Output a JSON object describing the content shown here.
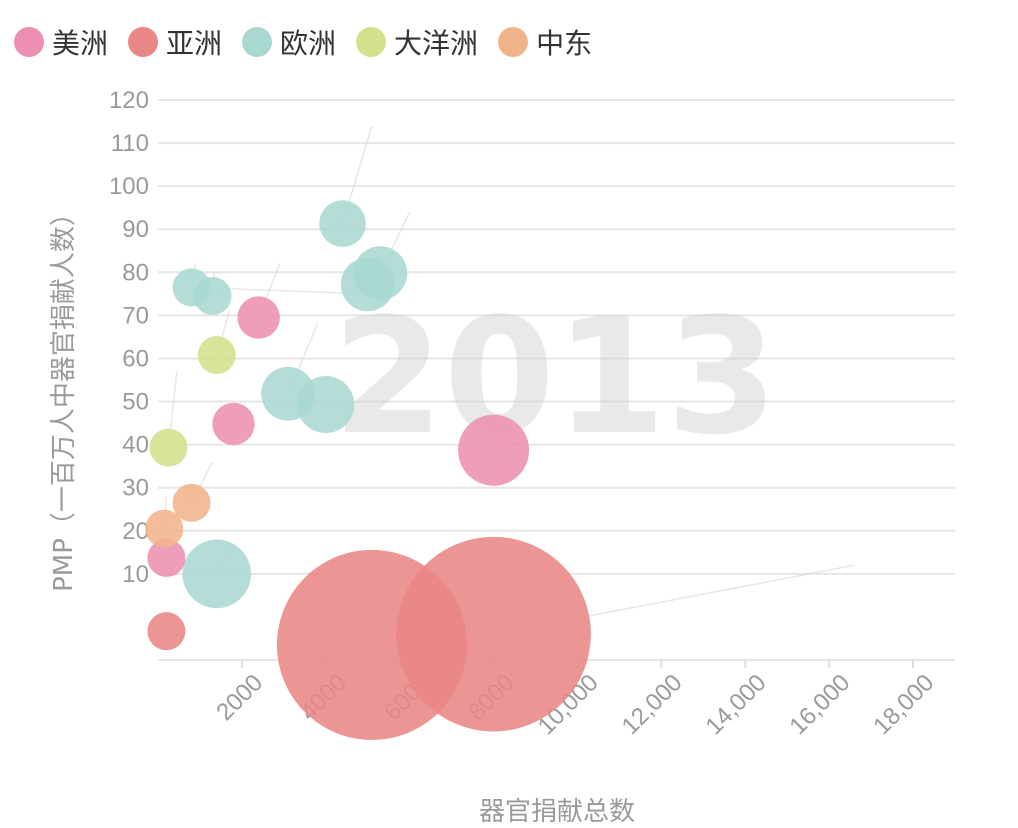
{
  "chart_data": {
    "type": "scatter",
    "title": "",
    "year_label": "2013",
    "xlabel": "器官捐献总数",
    "ylabel": "PMP（一百万人中器官捐献人数）",
    "xlim": [
      0,
      19000
    ],
    "ylim": [
      -10,
      120
    ],
    "x_ticks": [
      2000,
      4000,
      6000,
      8000,
      10000,
      12000,
      14000,
      16000,
      18000
    ],
    "x_tick_labels": [
      "2000",
      "4000",
      "6000",
      "8000",
      "10,000",
      "12,000",
      "14,000",
      "16,000",
      "18,000"
    ],
    "y_ticks": [
      10,
      20,
      30,
      40,
      50,
      60,
      70,
      80,
      90,
      100,
      110,
      120
    ],
    "grid": true,
    "legend_position": "top-left",
    "series": [
      {
        "name": "美洲",
        "color": "#ec8fb2",
        "points": [
          {
            "x": 2400,
            "y": 69.5,
            "size": 5
          },
          {
            "x": 1800,
            "y": 44.8,
            "size": 5
          },
          {
            "x": 8000,
            "y": 38.7,
            "size": 14
          },
          {
            "x": 200,
            "y": 13.7,
            "size": 4
          }
        ]
      },
      {
        "name": "亚洲",
        "color": "#e98686",
        "points": [
          {
            "x": 5100,
            "y": -6.5,
            "size": 100
          },
          {
            "x": 8000,
            "y": -4,
            "size": 105
          },
          {
            "x": 200,
            "y": -3.3,
            "size": 4
          }
        ]
      },
      {
        "name": "欧洲",
        "color": "#a9d8d0",
        "points": [
          {
            "x": 800,
            "y": 76.5,
            "size": 4
          },
          {
            "x": 1300,
            "y": 74.5,
            "size": 4
          },
          {
            "x": 4400,
            "y": 91.3,
            "size": 6
          },
          {
            "x": 5300,
            "y": 79.8,
            "size": 8
          },
          {
            "x": 5000,
            "y": 77.2,
            "size": 8
          },
          {
            "x": 3100,
            "y": 51.8,
            "size": 8
          },
          {
            "x": 4000,
            "y": 49.3,
            "size": 9
          },
          {
            "x": 1400,
            "y": 10,
            "size": 13
          }
        ]
      },
      {
        "name": "大洋洲",
        "color": "#d3e08c",
        "points": [
          {
            "x": 1400,
            "y": 60.8,
            "size": 4
          },
          {
            "x": 250,
            "y": 39.3,
            "size": 4
          }
        ]
      },
      {
        "name": "中东",
        "color": "#f0b48a",
        "points": [
          {
            "x": 800,
            "y": 26.5,
            "size": 4
          },
          {
            "x": 150,
            "y": 20.5,
            "size": 4
          }
        ]
      }
    ]
  }
}
